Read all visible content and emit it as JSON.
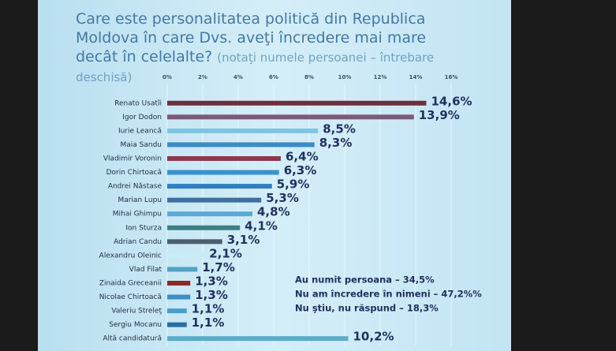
{
  "chart_data": {
    "type": "hbar",
    "title": "Care este personalitatea politică din Republica Moldova în care Dvs. aveţi încredere mai mare decât în celelalte?",
    "subtitle": "(notaţi numele persoanei – întrebare deschisă)",
    "categories": [
      "Renato Usatîi",
      "Igor Dodon",
      "Iurie Leancă",
      "Maia Sandu",
      "Vladimir Voronin",
      "Dorin Chirtoacă",
      "Andrei Năstase",
      "Marian Lupu",
      "Mihai Ghimpu",
      "Ion Sturza",
      "Adrian Candu",
      "Alexandru Oleinic",
      "Vlad Filat",
      "Zinaida Greceanii",
      "Nicolae Chirtoacă",
      "Valeriu Streleţ",
      "Sergiu Mocanu",
      "Altă candidatură"
    ],
    "values": [
      14.6,
      13.9,
      8.5,
      8.3,
      6.4,
      6.3,
      5.9,
      5.3,
      4.8,
      4.1,
      3.1,
      2.1,
      1.7,
      1.3,
      1.3,
      1.1,
      1.1,
      10.2
    ],
    "value_labels": [
      "14,6%",
      "13,9%",
      "8,5%",
      "8,3%",
      "6,4%",
      "6,3%",
      "5,9%",
      "5,3%",
      "4,8%",
      "4,1%",
      "3,1%",
      "2,1%",
      "1,7%",
      "1,3%",
      "1,3%",
      "1,1%",
      "1,1%",
      "10,2%"
    ],
    "colors": [
      "#6b3040",
      "#7b5a78",
      "#7fc4e0",
      "#3a8cc9",
      "#8b3a4a",
      "#3d8fd0",
      "#2f7fc0",
      "#3e6fa0",
      "#5aa8d8",
      "#3c7f86",
      "#4a5f70",
      "#c8ecf5",
      "#4fa3c8",
      "#8b2a2a",
      "#3a8fc8",
      "#4a9fc8",
      "#2a6fa0",
      "#5aacc8"
    ],
    "xlim": [
      0,
      16
    ],
    "xticks": [
      {
        "value": 0,
        "label": "0%"
      },
      {
        "value": 2,
        "label": "2%"
      },
      {
        "value": 4,
        "label": "4%"
      },
      {
        "value": 6,
        "label": "6%"
      },
      {
        "value": 8,
        "label": "8%"
      },
      {
        "value": 10,
        "label": "10%"
      },
      {
        "value": 12,
        "label": "12%"
      },
      {
        "value": 14,
        "label": "14%"
      },
      {
        "value": 16,
        "label": "16%"
      }
    ],
    "grid": true,
    "annotations": [
      "Au numit persoana – 34,5%",
      "Nu am încredere în nimeni – 47,2%%",
      "Nu ştiu, nu răspund – 18,3%"
    ]
  }
}
